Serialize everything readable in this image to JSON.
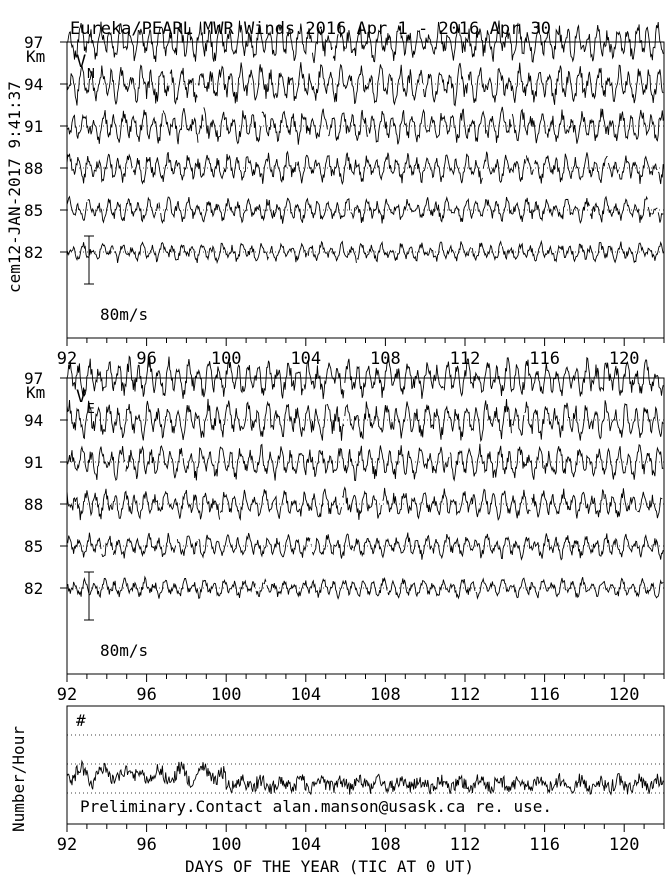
{
  "title": "Eureka/PEARL MWR Winds 2016 Apr  1 - 2016 Apr 30",
  "side_label": "cem12-JAN-2017  9:41:37",
  "footer_note": "Preliminary.Contact alan.manson@usask.ca re. use.",
  "chart_data": [
    {
      "type": "line",
      "panel": "VN",
      "label_main": "V",
      "label_sub": "N",
      "ylabel": "Km",
      "altitudes_km": [
        82,
        85,
        88,
        91,
        94,
        97
      ],
      "scale_label": "80m/s",
      "xlim": [
        92,
        122
      ],
      "x_ticks": [
        92,
        96,
        100,
        104,
        108,
        112,
        116,
        120
      ],
      "series": [
        {
          "altitude_km": 82,
          "amplitude_ms": 20
        },
        {
          "altitude_km": 85,
          "amplitude_ms": 25
        },
        {
          "altitude_km": 88,
          "amplitude_ms": 30
        },
        {
          "altitude_km": 91,
          "amplitude_ms": 35
        },
        {
          "altitude_km": 94,
          "amplitude_ms": 40
        },
        {
          "altitude_km": 97,
          "amplitude_ms": 40
        }
      ]
    },
    {
      "type": "line",
      "panel": "VE",
      "label_main": "V",
      "label_sub": "E",
      "ylabel": "Km",
      "altitudes_km": [
        82,
        85,
        88,
        91,
        94,
        97
      ],
      "scale_label": "80m/s",
      "xlim": [
        92,
        122
      ],
      "x_ticks": [
        92,
        96,
        100,
        104,
        108,
        112,
        116,
        120
      ],
      "series": [
        {
          "altitude_km": 82,
          "amplitude_ms": 20
        },
        {
          "altitude_km": 85,
          "amplitude_ms": 25
        },
        {
          "altitude_km": 88,
          "amplitude_ms": 30
        },
        {
          "altitude_km": 91,
          "amplitude_ms": 35
        },
        {
          "altitude_km": 94,
          "amplitude_ms": 40
        },
        {
          "altitude_km": 97,
          "amplitude_ms": 40
        }
      ]
    },
    {
      "type": "line",
      "panel": "count",
      "ylabel": "Number/Hour",
      "label_main": "#",
      "xlabel": "DAYS OF THE YEAR (TIC AT 0 UT)",
      "xlim": [
        92,
        122
      ],
      "x_ticks": [
        92,
        96,
        100,
        104,
        108,
        112,
        116,
        120
      ]
    }
  ]
}
